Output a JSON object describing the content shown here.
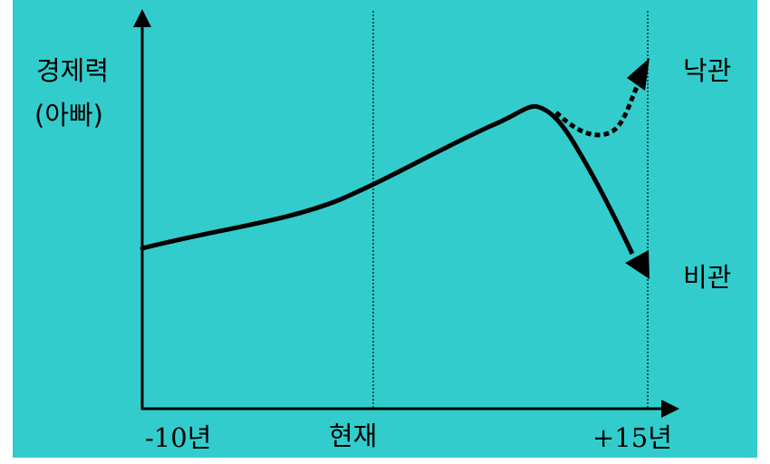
{
  "diagram": {
    "y_axis_label_line1": "경제력",
    "y_axis_label_line2": "(아빠)",
    "x_labels": {
      "start": "-10년",
      "present": "현재",
      "end": "+15년"
    },
    "scenario_optimistic": "낙관",
    "scenario_pessimistic": "비관"
  },
  "colors": {
    "background": "#33CCCC",
    "line": "#000000"
  }
}
